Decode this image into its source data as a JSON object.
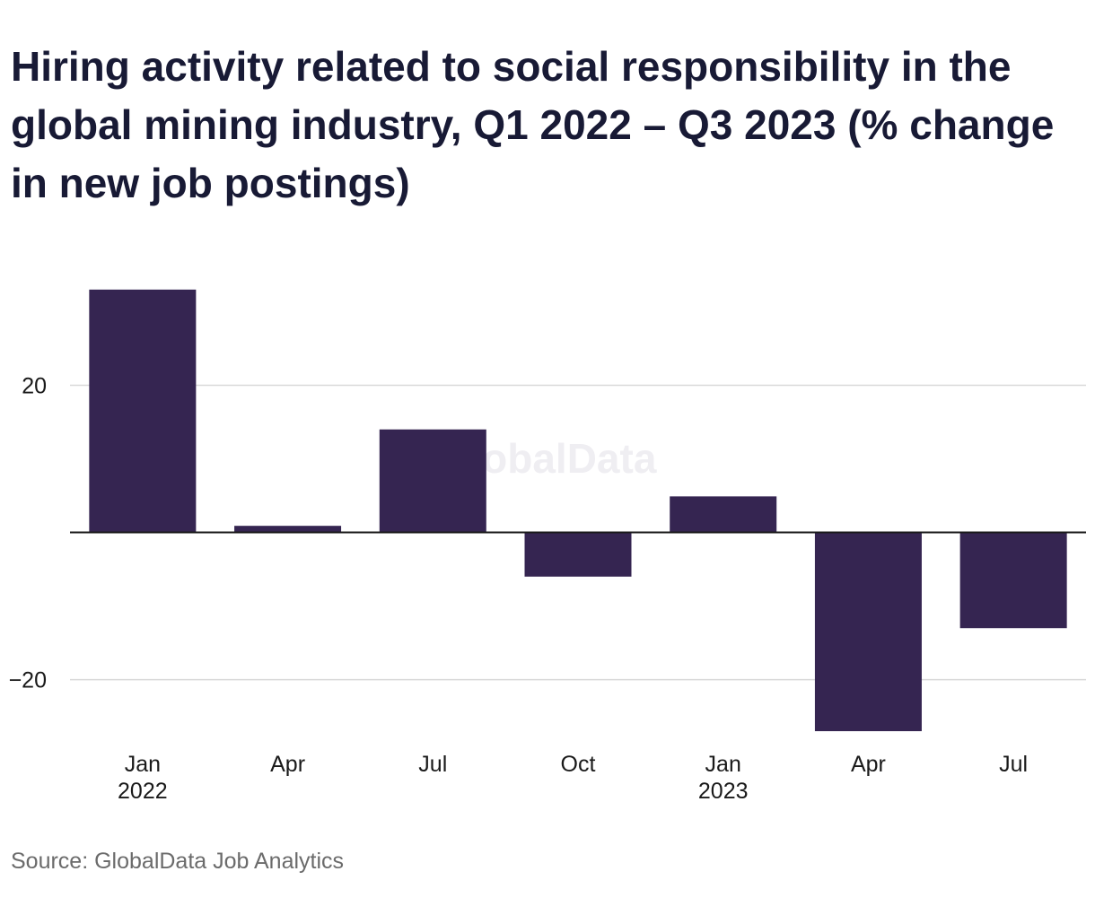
{
  "title": "Hiring activity related to social responsibility in the global mining industry, Q1 2022 – Q3 2023 (% change in new job postings)",
  "source": "Source: GlobalData Job Analytics",
  "watermark": "GlobalData",
  "colors": {
    "bar": "#352551",
    "grid": "#d9d9d9",
    "zero_line": "#1a1a1a",
    "text": "#1a1a1a",
    "title": "#181a35",
    "source": "#6b6b6b",
    "watermark": "#efeef2"
  },
  "chart_data": {
    "type": "bar",
    "categories": [
      {
        "label": "Jan",
        "sublabel": "2022"
      },
      {
        "label": "Apr",
        "sublabel": ""
      },
      {
        "label": "Jul",
        "sublabel": ""
      },
      {
        "label": "Oct",
        "sublabel": ""
      },
      {
        "label": "Jan",
        "sublabel": "2023"
      },
      {
        "label": "Apr",
        "sublabel": ""
      },
      {
        "label": "Jul",
        "sublabel": ""
      }
    ],
    "values": [
      33.0,
      0.9,
      14.0,
      -6.0,
      4.9,
      -27.0,
      -13.0
    ],
    "ylim": [
      -27.6,
      37.0
    ],
    "yticks": [
      20,
      -20
    ],
    "ytick_labels": [
      "20",
      "−20"
    ],
    "grid": true,
    "xlabel": "",
    "ylabel": ""
  }
}
